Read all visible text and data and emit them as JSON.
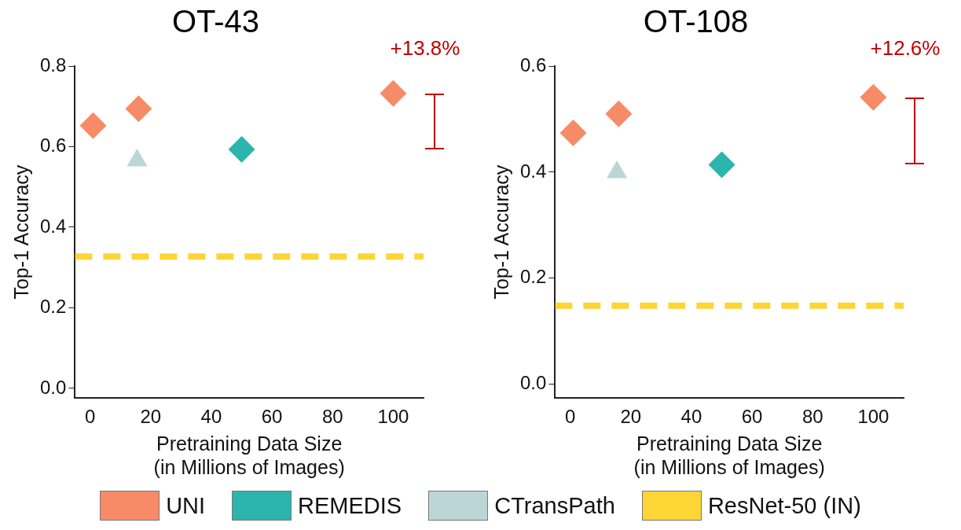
{
  "chart_data": [
    {
      "type": "scatter",
      "title": "OT-43",
      "xlabel": "Pretraining Data Size\n(in Millions of Images)",
      "ylabel": "Top-1 Accuracy",
      "xlim": [
        -5,
        110
      ],
      "xticks": [
        0,
        20,
        40,
        60,
        80,
        100
      ],
      "ylim": [
        -0.024,
        0.8
      ],
      "yticks": [
        {
          "value": 0,
          "label": "0.0"
        },
        0.2,
        0.4,
        0.6,
        0.8
      ],
      "grid": false,
      "legend": "bottom",
      "series": [
        {
          "name": "UNI",
          "color": "#f78b67",
          "marker": "diamond",
          "x": [
            1,
            16,
            100
          ],
          "values": [
            0.652,
            0.694,
            0.732
          ]
        },
        {
          "name": "REMEDIS",
          "color": "#2bb5ad",
          "marker": "diamond",
          "x": [
            50
          ],
          "values": [
            0.593
          ]
        },
        {
          "name": "CTransPath",
          "color": "#bcd6d7",
          "marker": "triangle",
          "x": [
            15.5
          ],
          "values": [
            0.566
          ]
        },
        {
          "name": "ResNet-50 (IN)",
          "type": "line",
          "color": "#fdd535",
          "line_style": "dashed",
          "marker": "none",
          "x": [
            -5,
            110
          ],
          "values": [
            0.327,
            0.327
          ]
        }
      ],
      "annotations": [
        "+13.8%"
      ]
    },
    {
      "type": "scatter",
      "title": "OT-108",
      "xlabel": "Pretraining Data Size\n(in Millions of Images)",
      "ylabel": "Top-1 Accuracy",
      "xlim": [
        -5,
        110
      ],
      "xticks": [
        0,
        20,
        40,
        60,
        80,
        100
      ],
      "ylim": [
        -0.026,
        0.6
      ],
      "yticks": [
        {
          "value": 0,
          "label": "0.0"
        },
        0.2,
        0.4,
        0.6
      ],
      "grid": false,
      "legend": "bottom",
      "series": [
        {
          "name": "UNI",
          "color": "#f78b67",
          "marker": "diamond",
          "x": [
            1,
            16,
            100
          ],
          "values": [
            0.474,
            0.51,
            0.541
          ]
        },
        {
          "name": "REMEDIS",
          "color": "#2bb5ad",
          "marker": "diamond",
          "x": [
            50
          ],
          "values": [
            0.414
          ]
        },
        {
          "name": "CTransPath",
          "color": "#bcd6d7",
          "marker": "triangle",
          "x": [
            15.4
          ],
          "values": [
            0.4
          ]
        },
        {
          "name": "ResNet-50 (IN)",
          "type": "line",
          "color": "#fdd535",
          "line_style": "dashed",
          "marker": "none",
          "x": [
            -5,
            110
          ],
          "values": [
            0.148,
            0.148
          ]
        }
      ],
      "annotations": [
        "+12.6%"
      ]
    }
  ]
}
